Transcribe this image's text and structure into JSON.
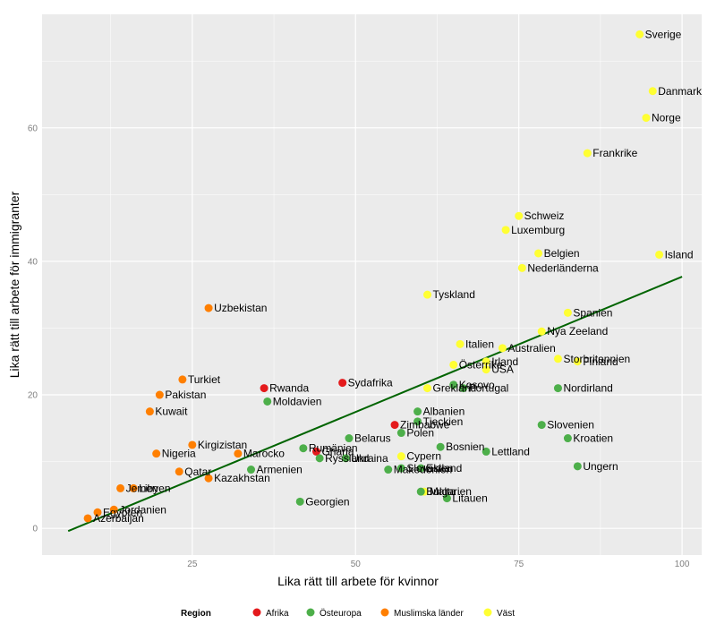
{
  "chart_data": {
    "type": "scatter",
    "xlabel": "Lika rätt till arbete för kvinnor",
    "ylabel": "Lika rätt till arbete för immigranter",
    "xlim": [
      2,
      103
    ],
    "ylim": [
      -4,
      77
    ],
    "x_ticks": [
      25,
      50,
      75,
      100
    ],
    "y_ticks": [
      0,
      20,
      40,
      60
    ],
    "grid": true,
    "legend": {
      "title": "Region",
      "position": "bottom",
      "entries": [
        {
          "name": "Afrika",
          "color": "#e41a1c"
        },
        {
          "name": "Östeuropa",
          "color": "#4daf4a"
        },
        {
          "name": "Muslimska länder",
          "color": "#ff7f00"
        },
        {
          "name": "Väst",
          "color": "#ffff33"
        }
      ]
    },
    "trend_line": {
      "color": "#006400",
      "points": [
        [
          6,
          -0.4
        ],
        [
          100,
          37.7
        ]
      ]
    },
    "points": [
      {
        "label": "Sverige",
        "x": 93.5,
        "y": 74,
        "region": "Väst"
      },
      {
        "label": "Danmark",
        "x": 95.5,
        "y": 65.5,
        "region": "Väst"
      },
      {
        "label": "Norge",
        "x": 94.5,
        "y": 61.5,
        "region": "Väst"
      },
      {
        "label": "Frankrike",
        "x": 85.5,
        "y": 56.2,
        "region": "Väst"
      },
      {
        "label": "Schweiz",
        "x": 75,
        "y": 46.8,
        "region": "Väst"
      },
      {
        "label": "Luxemburg",
        "x": 73,
        "y": 44.7,
        "region": "Väst"
      },
      {
        "label": "Belgien",
        "x": 78,
        "y": 41.2,
        "region": "Väst"
      },
      {
        "label": "Nederländerna",
        "x": 75.5,
        "y": 39,
        "region": "Väst"
      },
      {
        "label": "Island",
        "x": 96.5,
        "y": 41,
        "region": "Väst"
      },
      {
        "label": "Tyskland",
        "x": 61,
        "y": 35,
        "region": "Väst"
      },
      {
        "label": "Spanien",
        "x": 82.5,
        "y": 32.3,
        "region": "Väst"
      },
      {
        "label": "Nya Zeeland",
        "x": 78.5,
        "y": 29.5,
        "region": "Väst"
      },
      {
        "label": "Italien",
        "x": 66,
        "y": 27.6,
        "region": "Väst"
      },
      {
        "label": "Australien",
        "x": 72.5,
        "y": 27,
        "region": "Väst"
      },
      {
        "label": "Storbritannien",
        "x": 81,
        "y": 25.4,
        "region": "Väst"
      },
      {
        "label": "Irland",
        "x": 70,
        "y": 25,
        "region": "Väst"
      },
      {
        "label": "Finland",
        "x": 84,
        "y": 25,
        "region": "Väst"
      },
      {
        "label": "Österrike",
        "x": 65,
        "y": 24.5,
        "region": "Väst"
      },
      {
        "label": "USA",
        "x": 70,
        "y": 23.8,
        "region": "Väst"
      },
      {
        "label": "Grekland",
        "x": 61,
        "y": 21,
        "region": "Väst"
      },
      {
        "label": "Cypern",
        "x": 57,
        "y": 10.8,
        "region": "Väst"
      },
      {
        "label": "Malta",
        "x": 60.5,
        "y": 5.5,
        "region": "Väst"
      },
      {
        "label": "Rwanda",
        "x": 36,
        "y": 21,
        "region": "Afrika"
      },
      {
        "label": "Sydafrika",
        "x": 48,
        "y": 21.8,
        "region": "Afrika"
      },
      {
        "label": "Zimbabwe",
        "x": 56,
        "y": 15.5,
        "region": "Afrika"
      },
      {
        "label": "Ghana",
        "x": 44,
        "y": 11.5,
        "region": "Afrika"
      },
      {
        "label": "Kosovo",
        "x": 65,
        "y": 21.5,
        "region": "Östeuropa"
      },
      {
        "label": "Portugal",
        "x": 66.5,
        "y": 21,
        "region": "Östeuropa"
      },
      {
        "label": "Nordirland",
        "x": 81,
        "y": 21,
        "region": "Östeuropa"
      },
      {
        "label": "Moldavien",
        "x": 36.5,
        "y": 19,
        "region": "Östeuropa"
      },
      {
        "label": "Albanien",
        "x": 59.5,
        "y": 17.5,
        "region": "Östeuropa"
      },
      {
        "label": "Tjeckien",
        "x": 59.5,
        "y": 16,
        "region": "Östeuropa"
      },
      {
        "label": "Polen",
        "x": 57,
        "y": 14.3,
        "region": "Östeuropa"
      },
      {
        "label": "Belarus",
        "x": 49,
        "y": 13.5,
        "region": "Östeuropa"
      },
      {
        "label": "Rumänien",
        "x": 42,
        "y": 12,
        "region": "Östeuropa"
      },
      {
        "label": "Ryssland",
        "x": 44.5,
        "y": 10.5,
        "region": "Östeuropa"
      },
      {
        "label": "Ukraina",
        "x": 48.5,
        "y": 10.5,
        "region": "Östeuropa"
      },
      {
        "label": "Slovakien",
        "x": 57,
        "y": 9,
        "region": "Östeuropa"
      },
      {
        "label": "Estland",
        "x": 60,
        "y": 9,
        "region": "Östeuropa"
      },
      {
        "label": "Makedonien",
        "x": 55,
        "y": 8.8,
        "region": "Östeuropa"
      },
      {
        "label": "Bosnien",
        "x": 63,
        "y": 12.2,
        "region": "Östeuropa"
      },
      {
        "label": "Lettland",
        "x": 70,
        "y": 11.5,
        "region": "Östeuropa"
      },
      {
        "label": "Slovenien",
        "x": 78.5,
        "y": 15.5,
        "region": "Östeuropa"
      },
      {
        "label": "Kroatien",
        "x": 82.5,
        "y": 13.5,
        "region": "Östeuropa"
      },
      {
        "label": "Ungern",
        "x": 84,
        "y": 9.3,
        "region": "Östeuropa"
      },
      {
        "label": "Armenien",
        "x": 34,
        "y": 8.8,
        "region": "Östeuropa"
      },
      {
        "label": "Bulgarien",
        "x": 60,
        "y": 5.5,
        "region": "Östeuropa"
      },
      {
        "label": "Litauen",
        "x": 64,
        "y": 4.5,
        "region": "Östeuropa"
      },
      {
        "label": "Georgien",
        "x": 41.5,
        "y": 4,
        "region": "Östeuropa"
      },
      {
        "label": "Uzbekistan",
        "x": 27.5,
        "y": 33,
        "region": "Muslimska länder"
      },
      {
        "label": "Turkiet",
        "x": 23.5,
        "y": 22.3,
        "region": "Muslimska länder"
      },
      {
        "label": "Pakistan",
        "x": 20,
        "y": 20,
        "region": "Muslimska länder"
      },
      {
        "label": "Kuwait",
        "x": 18.5,
        "y": 17.5,
        "region": "Muslimska länder"
      },
      {
        "label": "Kirgizistan",
        "x": 25,
        "y": 12.5,
        "region": "Muslimska länder"
      },
      {
        "label": "Nigeria",
        "x": 19.5,
        "y": 11.2,
        "region": "Muslimska länder"
      },
      {
        "label": "Marocko",
        "x": 32,
        "y": 11.2,
        "region": "Muslimska länder"
      },
      {
        "label": "Qatar",
        "x": 23,
        "y": 8.5,
        "region": "Muslimska länder"
      },
      {
        "label": "Kazakhstan",
        "x": 27.5,
        "y": 7.5,
        "region": "Muslimska länder"
      },
      {
        "label": "Jemen",
        "x": 14,
        "y": 6,
        "region": "Muslimska länder"
      },
      {
        "label": "Libyen",
        "x": 16,
        "y": 6,
        "region": "Muslimska länder"
      },
      {
        "label": "Jordanien",
        "x": 13,
        "y": 2.8,
        "region": "Muslimska länder"
      },
      {
        "label": "Egypten",
        "x": 10.5,
        "y": 2.4,
        "region": "Muslimska länder"
      },
      {
        "label": "Azerbaijan",
        "x": 9,
        "y": 1.5,
        "region": "Muslimska länder"
      }
    ]
  }
}
